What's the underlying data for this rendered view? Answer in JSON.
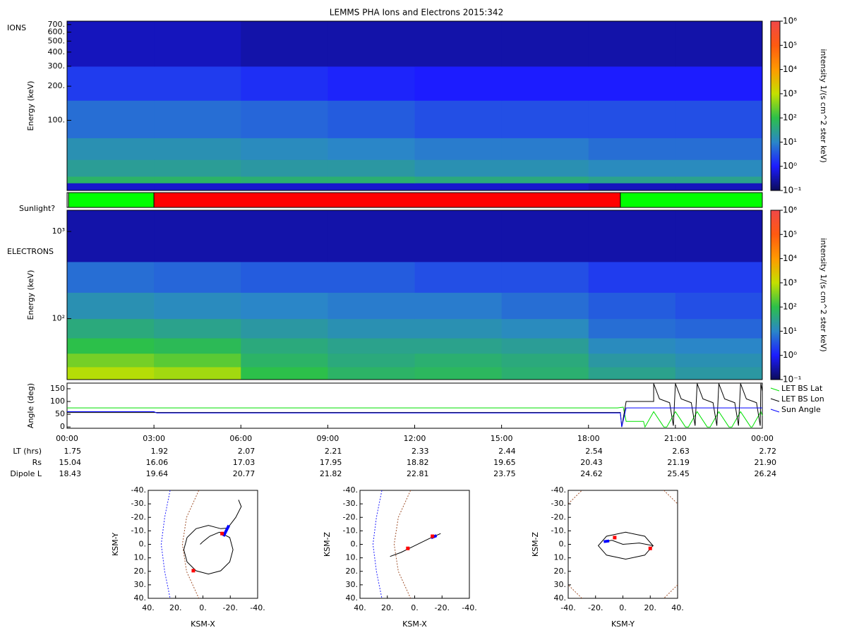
{
  "chart_data": [
    {
      "type": "heatmap",
      "title": "LEMMS PHA Ions and Electrons  2015:342",
      "panel_label": "IONS",
      "ylabel": "Energy (keV)",
      "log_y": true,
      "xlim": [
        0,
        24
      ],
      "ylim": [
        24,
        750
      ],
      "yticks": [
        {
          "value": 100,
          "label": "100."
        },
        {
          "value": 200,
          "label": "200."
        },
        {
          "value": 300,
          "label": "300."
        },
        {
          "value": 400,
          "label": "400."
        },
        {
          "value": 500,
          "label": "500."
        },
        {
          "value": 600,
          "label": "600."
        },
        {
          "value": 700,
          "label": "700."
        }
      ],
      "x_bins": [
        0,
        3,
        6,
        9,
        12,
        15,
        18,
        21,
        24
      ],
      "y_bins": [
        24,
        28,
        32,
        45,
        70,
        150,
        300,
        750
      ],
      "values": [
        [
          0.5,
          0.5,
          0.5,
          0.5,
          0.5,
          0.5,
          0.4,
          0.4
        ],
        [
          60,
          60,
          50,
          50,
          40,
          40,
          30,
          30
        ],
        [
          25,
          25,
          20,
          20,
          15,
          15,
          12,
          12
        ],
        [
          15,
          15,
          12,
          10,
          8,
          8,
          6,
          6
        ],
        [
          6,
          6,
          5,
          4,
          3,
          3,
          3,
          3
        ],
        [
          2,
          2,
          1.5,
          1.2,
          1,
          1,
          1,
          1
        ],
        [
          0.4,
          0.4,
          0.3,
          0.3,
          0.3,
          0.3,
          0.3,
          0.3
        ]
      ],
      "colorbar": {
        "label": "intensity 1/(s cm^2 ster keV)",
        "lim": [
          0.1,
          1000000
        ],
        "ticks": [
          {
            "value": 0.1,
            "label": "10⁻¹"
          },
          {
            "value": 1,
            "label": "10⁰"
          },
          {
            "value": 10,
            "label": "10¹"
          },
          {
            "value": 100,
            "label": "10²"
          },
          {
            "value": 1000,
            "label": "10³"
          },
          {
            "value": 10000,
            "label": "10⁴"
          },
          {
            "value": 100000,
            "label": "10⁵"
          },
          {
            "value": 1000000,
            "label": "10⁶"
          }
        ],
        "colors": [
          "#0b0b5a",
          "#1c1cff",
          "#2a86c8",
          "#2cc04a",
          "#c4e000",
          "#ff9a00",
          "#ff5a10",
          "#f04848"
        ]
      }
    },
    {
      "type": "timeline",
      "label": "Sunlight?",
      "xlim": [
        0,
        24
      ],
      "segments": [
        {
          "start": 0,
          "end": 0.05,
          "color": "#ffffff"
        },
        {
          "start": 0.05,
          "end": 3.0,
          "color": "#00ff00"
        },
        {
          "start": 3.0,
          "end": 19.1,
          "color": "#ff0000"
        },
        {
          "start": 19.1,
          "end": 24,
          "color": "#00ff00"
        }
      ]
    },
    {
      "type": "heatmap",
      "panel_label": "ELECTRONS",
      "ylabel": "Energy (keV)",
      "log_y": true,
      "xlim": [
        0,
        24
      ],
      "ylim": [
        20,
        1750
      ],
      "yticks": [
        {
          "value": 100,
          "label": "10²"
        },
        {
          "value": 1000,
          "label": "10³"
        }
      ],
      "x_bins": [
        0,
        3,
        6,
        9,
        12,
        15,
        18,
        21,
        24
      ],
      "y_bins": [
        20,
        28,
        40,
        60,
        100,
        200,
        450,
        1750
      ],
      "values": [
        [
          800,
          600,
          100,
          60,
          70,
          50,
          30,
          20
        ],
        [
          300,
          200,
          60,
          40,
          50,
          40,
          20,
          15
        ],
        [
          100,
          80,
          40,
          30,
          30,
          25,
          12,
          10
        ],
        [
          40,
          30,
          20,
          15,
          15,
          12,
          6,
          5
        ],
        [
          15,
          12,
          10,
          8,
          8,
          6,
          4,
          3
        ],
        [
          6,
          5,
          4,
          4,
          3,
          3,
          2,
          2
        ],
        [
          0.3,
          0.3,
          0.3,
          0.3,
          0.3,
          0.3,
          0.3,
          0.3
        ]
      ],
      "colorbar": {
        "label": "intensity 1/(s cm^2 ster keV)",
        "lim": [
          0.1,
          1000000
        ],
        "ticks": [
          {
            "value": 0.1,
            "label": "10⁻¹"
          },
          {
            "value": 1,
            "label": "10⁰"
          },
          {
            "value": 10,
            "label": "10¹"
          },
          {
            "value": 100,
            "label": "10²"
          },
          {
            "value": 1000,
            "label": "10³"
          },
          {
            "value": 10000,
            "label": "10⁴"
          },
          {
            "value": 100000,
            "label": "10⁵"
          },
          {
            "value": 1000000,
            "label": "10⁶"
          }
        ],
        "colors": [
          "#0b0b5a",
          "#1c1cff",
          "#2a86c8",
          "#2cc04a",
          "#c4e000",
          "#ff9a00",
          "#ff5a10",
          "#f04848"
        ]
      }
    },
    {
      "type": "line",
      "ylabel": "Angle (deg)",
      "xlim": [
        0,
        24
      ],
      "ylim": [
        -5,
        172
      ],
      "yticks": [
        0,
        50,
        100,
        150
      ],
      "xticks": [
        {
          "value": 0,
          "label": "00:00"
        },
        {
          "value": 3,
          "label": "03:00"
        },
        {
          "value": 6,
          "label": "06:00"
        },
        {
          "value": 9,
          "label": "09:00"
        },
        {
          "value": 12,
          "label": "12:00"
        },
        {
          "value": 15,
          "label": "15:00"
        },
        {
          "value": 18,
          "label": "18:00"
        },
        {
          "value": 21,
          "label": "21:00"
        },
        {
          "value": 24,
          "label": "00:00"
        }
      ],
      "series": [
        {
          "name": "LET BS Lat",
          "color": "#00e000",
          "x": [
            0,
            19.0,
            19.2,
            19.3,
            19.9,
            19.95,
            20.25,
            20.6,
            20.7,
            21.0,
            21.35,
            21.45,
            21.75,
            22.1,
            22.2,
            22.5,
            22.85,
            22.95,
            23.25,
            23.6,
            23.65,
            23.95,
            24
          ],
          "values": [
            75,
            75,
            78,
            22,
            22,
            0,
            60,
            0,
            0,
            60,
            0,
            0,
            60,
            0,
            0,
            60,
            0,
            0,
            60,
            0,
            0,
            60,
            45
          ]
        },
        {
          "name": "LET BS Lon",
          "color": "#000000",
          "x": [
            0,
            19.1,
            19.15,
            19.3,
            20.25,
            20.25,
            20.45,
            20.8,
            20.93,
            21.0,
            21.2,
            21.55,
            21.68,
            21.75,
            21.95,
            22.3,
            22.43,
            22.5,
            22.7,
            23.05,
            23.18,
            23.25,
            23.45,
            23.8,
            23.93,
            23.95,
            24
          ],
          "values": [
            57,
            57,
            0,
            100,
            100,
            170,
            110,
            95,
            5,
            170,
            110,
            95,
            5,
            170,
            110,
            95,
            5,
            170,
            110,
            95,
            5,
            170,
            110,
            95,
            5,
            170,
            140
          ]
        },
        {
          "name": "Sun Angle",
          "color": "#0000ff",
          "x": [
            0,
            3.0,
            3.1,
            19.1,
            19.15,
            19.3,
            24
          ],
          "values": [
            60,
            60,
            55,
            55,
            0,
            75,
            75
          ]
        }
      ],
      "ephemeris": [
        {
          "label": "LT (hrs)",
          "values": [
            "1.75",
            "1.92",
            "2.07",
            "2.21",
            "2.33",
            "2.44",
            "2.54",
            "2.63",
            "2.72"
          ]
        },
        {
          "label": "Rs",
          "values": [
            "15.04",
            "16.06",
            "17.03",
            "17.95",
            "18.82",
            "19.65",
            "20.43",
            "21.19",
            "21.90"
          ]
        },
        {
          "label": "Dipole L",
          "values": [
            "18.43",
            "19.64",
            "20.77",
            "21.82",
            "22.81",
            "23.75",
            "24.62",
            "25.45",
            "26.24"
          ]
        }
      ]
    },
    {
      "type": "orbit",
      "xlabel": "KSM-X",
      "ylabel": "KSM-Y",
      "xlim": [
        40,
        -40
      ],
      "ylim": [
        40,
        -40
      ],
      "xticks": [
        {
          "value": 40,
          "label": "40."
        },
        {
          "value": 20,
          "label": "20."
        },
        {
          "value": 0,
          "label": "0."
        },
        {
          "value": -20,
          "label": "-20."
        },
        {
          "value": -40,
          "label": "-40."
        }
      ],
      "yticks": [
        {
          "value": -40,
          "label": "-40."
        },
        {
          "value": -30,
          "label": "-30."
        },
        {
          "value": -20,
          "label": "-20."
        },
        {
          "value": -10,
          "label": "-10."
        },
        {
          "value": 0,
          "label": "0."
        },
        {
          "value": 10,
          "label": "10."
        },
        {
          "value": 20,
          "label": "20."
        },
        {
          "value": 30,
          "label": "30."
        },
        {
          "value": 40,
          "label": "40."
        }
      ],
      "series": [
        {
          "color": "#2020ff",
          "dash": true,
          "x": [
            24,
            28,
            30.5,
            28,
            24
          ],
          "y": [
            -40,
            -20,
            0,
            20,
            40
          ]
        },
        {
          "color": "#a0522d",
          "dash": true,
          "x": [
            3,
            12,
            15,
            12,
            3
          ],
          "y": [
            -40,
            -20,
            0,
            20,
            40
          ]
        },
        {
          "color": "#000000",
          "dash": false,
          "x": [
            -26,
            -28,
            -24,
            -18,
            -13,
            -4,
            5,
            11.6,
            14,
            11.6,
            5,
            -4,
            -13,
            -19.6,
            -22,
            -19.6,
            -12,
            -5,
            0,
            2
          ],
          "y": [
            -33,
            -28,
            -20,
            -12,
            -11.6,
            -14,
            -11.6,
            -5,
            4,
            13,
            19.6,
            22,
            19.6,
            13,
            4,
            -5,
            -9,
            -6,
            -2,
            0
          ]
        },
        {
          "color": "#0000ff",
          "dash": false,
          "width": 4,
          "x": [
            -19,
            -17,
            -15
          ],
          "y": [
            -14,
            -10,
            -6
          ]
        }
      ],
      "markers": [
        {
          "color": "#ff0000",
          "x": [
            -14,
            7
          ],
          "y": [
            -8,
            19.5
          ]
        }
      ]
    },
    {
      "type": "orbit",
      "xlabel": "KSM-X",
      "ylabel": "KSM-Z",
      "xlim": [
        40,
        -40
      ],
      "ylim": [
        40,
        -40
      ],
      "xticks": [
        {
          "value": 40,
          "label": "40."
        },
        {
          "value": 20,
          "label": "20."
        },
        {
          "value": 0,
          "label": "0."
        },
        {
          "value": -20,
          "label": "-20."
        },
        {
          "value": -40,
          "label": "-40."
        }
      ],
      "yticks": [
        {
          "value": -40,
          "label": "-40."
        },
        {
          "value": -30,
          "label": "-30."
        },
        {
          "value": -20,
          "label": "-20."
        },
        {
          "value": -10,
          "label": "-10."
        },
        {
          "value": 0,
          "label": "0."
        },
        {
          "value": 10,
          "label": "10."
        },
        {
          "value": 20,
          "label": "20."
        },
        {
          "value": 30,
          "label": "30."
        },
        {
          "value": 40,
          "label": "40."
        }
      ],
      "series": [
        {
          "color": "#2020ff",
          "dash": true,
          "x": [
            24,
            28,
            30.5,
            28,
            24
          ],
          "y": [
            -40,
            -20,
            0,
            20,
            40
          ]
        },
        {
          "color": "#a0522d",
          "dash": true,
          "x": [
            3,
            12,
            15,
            12,
            3
          ],
          "y": [
            -40,
            -20,
            0,
            20,
            40
          ]
        },
        {
          "color": "#000000",
          "dash": false,
          "x": [
            18,
            10,
            0,
            -10,
            -19
          ],
          "y": [
            9,
            6,
            1,
            -4,
            -8
          ]
        },
        {
          "color": "#0000ff",
          "dash": false,
          "width": 4,
          "x": [
            -12,
            -16
          ],
          "y": [
            -4.8,
            -6.5
          ]
        }
      ],
      "markers": [
        {
          "color": "#ff0000",
          "x": [
            5,
            -13
          ],
          "y": [
            3,
            -6
          ]
        }
      ]
    },
    {
      "type": "orbit",
      "xlabel": "KSM-Y",
      "ylabel": "KSM-Z",
      "xlim": [
        -40,
        40
      ],
      "ylim": [
        40,
        -40
      ],
      "xticks": [
        {
          "value": -40,
          "label": "-40."
        },
        {
          "value": -20,
          "label": "-20."
        },
        {
          "value": 0,
          "label": "0."
        },
        {
          "value": 20,
          "label": "20."
        },
        {
          "value": 40,
          "label": "40."
        }
      ],
      "yticks": [
        {
          "value": -40,
          "label": "-40."
        },
        {
          "value": -30,
          "label": "-30."
        },
        {
          "value": -20,
          "label": "-20."
        },
        {
          "value": -10,
          "label": "-10."
        },
        {
          "value": 0,
          "label": "0."
        },
        {
          "value": 10,
          "label": "10."
        },
        {
          "value": 20,
          "label": "20."
        },
        {
          "value": 30,
          "label": "30."
        },
        {
          "value": 40,
          "label": "40."
        }
      ],
      "series": [
        {
          "color": "#a0522d",
          "dash": true,
          "x": [
            -40,
            -30,
            null,
            30,
            40,
            null,
            40,
            30,
            null,
            -30,
            -40
          ],
          "y": [
            -30,
            -40,
            null,
            -40,
            -30,
            null,
            30,
            40,
            null,
            40,
            30
          ]
        },
        {
          "color": "#000000",
          "dash": false,
          "x": [
            22,
            16,
            2,
            -12,
            -18,
            -12,
            2,
            16,
            22,
            12,
            0,
            -8,
            -14
          ],
          "y": [
            1,
            8,
            11,
            8,
            1,
            -6,
            -9,
            -6,
            1,
            -1,
            0,
            -3,
            -2
          ]
        },
        {
          "color": "#0000ff",
          "dash": false,
          "width": 4,
          "x": [
            -14,
            -10
          ],
          "y": [
            -2,
            -2.5
          ]
        }
      ],
      "markers": [
        {
          "color": "#ff0000",
          "x": [
            -6,
            20
          ],
          "y": [
            -5,
            3
          ]
        }
      ]
    }
  ]
}
